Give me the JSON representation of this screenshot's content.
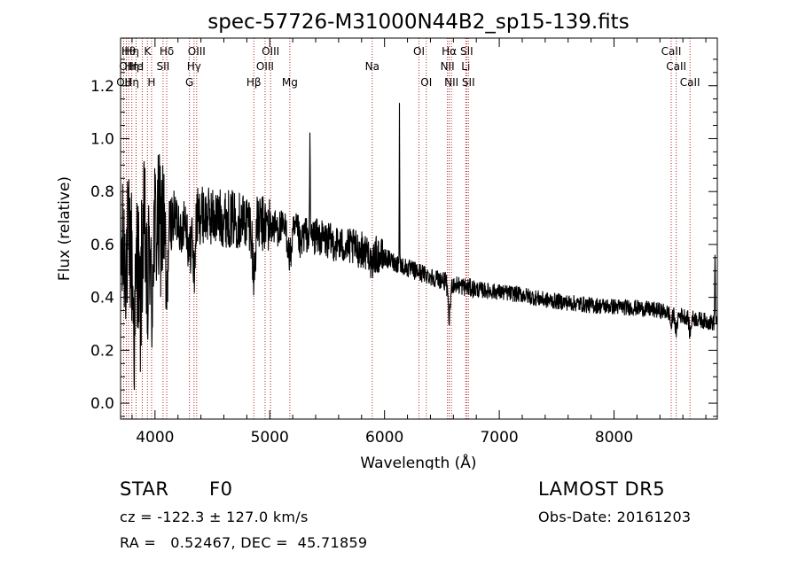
{
  "chart_data": {
    "type": "line",
    "title": "spec-57726-M31000N44B2_sp15-139.fits",
    "xlabel": "Wavelength (Å)",
    "ylabel": "Flux (relative)",
    "xlim": [
      3700,
      8900
    ],
    "ylim": [
      -0.06,
      1.38
    ],
    "xticks": [
      4000,
      5000,
      6000,
      7000,
      8000
    ],
    "yticks": [
      0.0,
      0.2,
      0.4,
      0.6,
      0.8,
      1.0,
      1.2
    ],
    "ytick_labels": [
      "0.0",
      "0.2",
      "0.4",
      "0.6",
      "0.8",
      "1.0",
      "1.2"
    ],
    "grid": false,
    "line_color": "#000000",
    "marker_color": "#b22222",
    "continuum": [
      [
        3700,
        0.55
      ],
      [
        3800,
        0.6
      ],
      [
        3900,
        0.64
      ],
      [
        4000,
        0.66
      ],
      [
        4100,
        0.68
      ],
      [
        4200,
        0.7
      ],
      [
        4400,
        0.71
      ],
      [
        4600,
        0.7
      ],
      [
        4800,
        0.69
      ],
      [
        5000,
        0.67
      ],
      [
        5200,
        0.65
      ],
      [
        5400,
        0.63
      ],
      [
        5600,
        0.6
      ],
      [
        5800,
        0.58
      ],
      [
        6000,
        0.55
      ],
      [
        6200,
        0.51
      ],
      [
        6400,
        0.48
      ],
      [
        6600,
        0.45
      ],
      [
        6800,
        0.43
      ],
      [
        7000,
        0.42
      ],
      [
        7200,
        0.41
      ],
      [
        7400,
        0.39
      ],
      [
        7600,
        0.38
      ],
      [
        7800,
        0.37
      ],
      [
        8000,
        0.365
      ],
      [
        8200,
        0.36
      ],
      [
        8400,
        0.35
      ],
      [
        8600,
        0.33
      ],
      [
        8800,
        0.31
      ],
      [
        8900,
        0.3
      ]
    ],
    "features": [
      [
        3820,
        -0.34,
        12
      ],
      [
        3870,
        -0.3,
        10
      ],
      [
        3934,
        -0.3,
        8
      ],
      [
        3970,
        -0.3,
        8
      ],
      [
        4101,
        -0.3,
        10
      ],
      [
        4227,
        -0.12,
        6
      ],
      [
        4300,
        -0.15,
        12
      ],
      [
        4340,
        -0.22,
        10
      ],
      [
        4861,
        -0.2,
        12
      ],
      [
        5175,
        -0.1,
        15
      ],
      [
        5270,
        -0.06,
        10
      ],
      [
        5350,
        0.4,
        2
      ],
      [
        5890,
        -0.08,
        8
      ],
      [
        6130,
        0.62,
        2
      ],
      [
        6563,
        -0.14,
        10
      ],
      [
        8498,
        -0.05,
        8
      ],
      [
        8542,
        -0.07,
        8
      ],
      [
        8662,
        -0.06,
        8
      ],
      [
        8880,
        0.25,
        3
      ]
    ],
    "lines": [
      {
        "wave": 3727,
        "labels": [
          {
            "row": 2,
            "text": "OII"
          }
        ]
      },
      {
        "wave": 3750,
        "labels": [
          {
            "row": 1,
            "text": "OII"
          }
        ]
      },
      {
        "wave": 3770,
        "labels": [
          {
            "row": 0,
            "text": "Hθ"
          }
        ]
      },
      {
        "wave": 3798,
        "labels": [
          {
            "row": 0,
            "text": "Hη"
          },
          {
            "row": 1,
            "text": "Hη"
          },
          {
            "row": 2,
            "text": "Hη"
          }
        ]
      },
      {
        "wave": 3835,
        "labels": [
          {
            "row": 1,
            "text": "He"
          }
        ]
      },
      {
        "wave": 3889,
        "labels": [
          {
            "row": 1,
            "text": "I"
          }
        ]
      },
      {
        "wave": 3934,
        "labels": [
          {
            "row": 0,
            "text": "K"
          }
        ]
      },
      {
        "wave": 3970,
        "labels": [
          {
            "row": 2,
            "text": "H"
          }
        ]
      },
      {
        "wave": 4070,
        "labels": [
          {
            "row": 1,
            "text": "SII"
          }
        ]
      },
      {
        "wave": 4102,
        "labels": [
          {
            "row": 0,
            "text": "Hδ"
          }
        ]
      },
      {
        "wave": 4300,
        "labels": [
          {
            "row": 2,
            "text": "G"
          }
        ]
      },
      {
        "wave": 4340,
        "labels": [
          {
            "row": 1,
            "text": "Hγ"
          }
        ]
      },
      {
        "wave": 4363,
        "labels": [
          {
            "row": 0,
            "text": "OIII"
          }
        ]
      },
      {
        "wave": 4861,
        "labels": [
          {
            "row": 2,
            "text": "Hβ"
          }
        ]
      },
      {
        "wave": 4959,
        "labels": [
          {
            "row": 1,
            "text": "OIII"
          }
        ]
      },
      {
        "wave": 5007,
        "labels": [
          {
            "row": 0,
            "text": "OIII"
          }
        ]
      },
      {
        "wave": 5175,
        "labels": [
          {
            "row": 2,
            "text": "Mg"
          }
        ]
      },
      {
        "wave": 5893,
        "labels": [
          {
            "row": 1,
            "text": "Na"
          }
        ]
      },
      {
        "wave": 6300,
        "labels": [
          {
            "row": 0,
            "text": "OI"
          }
        ]
      },
      {
        "wave": 6364,
        "labels": [
          {
            "row": 2,
            "text": "OI"
          }
        ]
      },
      {
        "wave": 6548,
        "labels": [
          {
            "row": 1,
            "text": "NII"
          }
        ]
      },
      {
        "wave": 6563,
        "labels": [
          {
            "row": 0,
            "text": "Hα"
          }
        ]
      },
      {
        "wave": 6583,
        "labels": [
          {
            "row": 2,
            "text": "NII"
          }
        ]
      },
      {
        "wave": 6708,
        "labels": [
          {
            "row": 1,
            "text": "Li"
          }
        ]
      },
      {
        "wave": 6716,
        "labels": [
          {
            "row": 0,
            "text": "SII"
          }
        ]
      },
      {
        "wave": 6731,
        "labels": [
          {
            "row": 2,
            "text": "SII"
          }
        ]
      },
      {
        "wave": 8498,
        "labels": [
          {
            "row": 0,
            "text": "CaII"
          }
        ]
      },
      {
        "wave": 8542,
        "labels": [
          {
            "row": 1,
            "text": "CaII"
          }
        ]
      },
      {
        "wave": 8662,
        "labels": [
          {
            "row": 2,
            "text": "CaII"
          }
        ]
      }
    ]
  },
  "info": {
    "object_class": "STAR",
    "subclass": "F0",
    "survey": "LAMOST DR5",
    "cz": "cz = -122.3 ± 127.0 km/s",
    "obs_date": "Obs-Date: 20161203",
    "coords": "RA =   0.52467, DEC =  45.71859"
  }
}
